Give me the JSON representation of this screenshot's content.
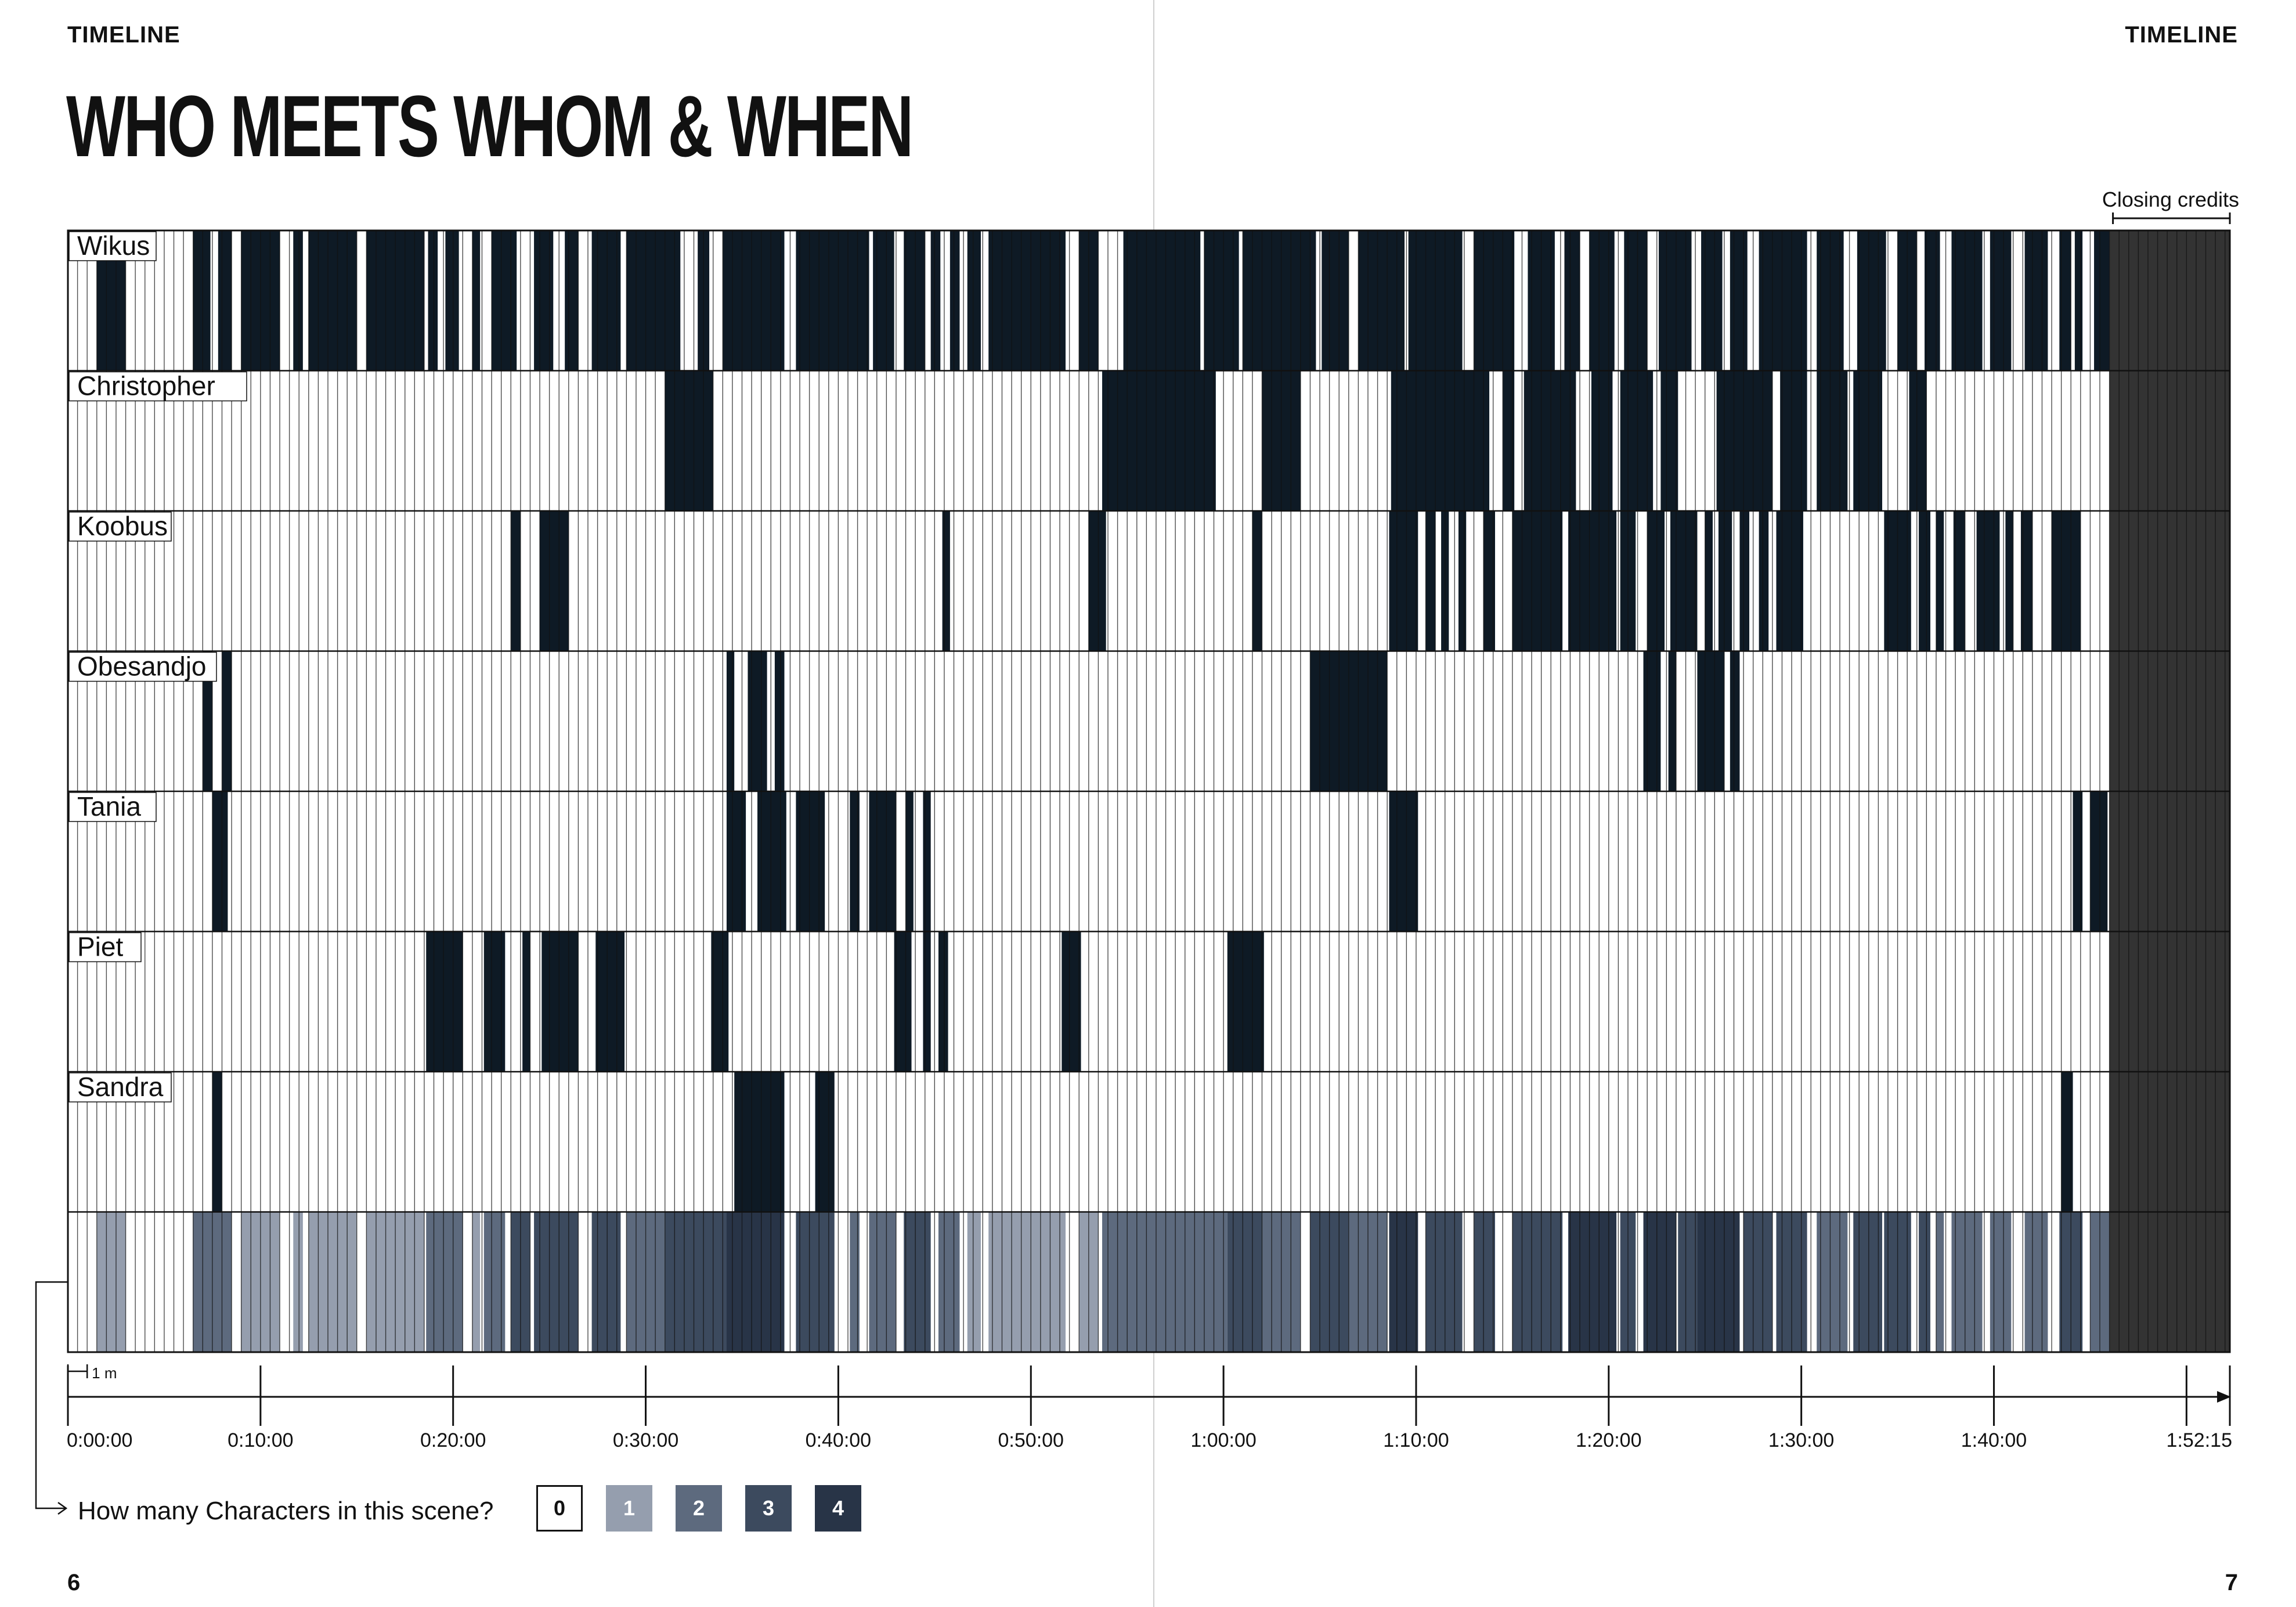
{
  "header": {
    "left_label": "TIMELINE",
    "right_label": "TIMELINE"
  },
  "title": "WHO MEETS WHOM & WHEN",
  "annotations": {
    "closing_credits": "Closing credits",
    "scale_label": "1 m"
  },
  "footer": {
    "left_page": "6",
    "right_page": "7"
  },
  "legend": {
    "question": "How many Characters in this scene?",
    "items": [
      {
        "label": "0",
        "color": "#ffffff"
      },
      {
        "label": "1",
        "color": "#959eae"
      },
      {
        "label": "2",
        "color": "#5d6a7e"
      },
      {
        "label": "3",
        "color": "#3c4a5e"
      },
      {
        "label": "4",
        "color": "#283447"
      }
    ]
  },
  "colors": {
    "present": "#0e1a25",
    "credits": "#333333",
    "grid": "#111111"
  },
  "chart_data": {
    "type": "heatmap",
    "unit": "minutes",
    "total_minutes": 112.25,
    "film_minutes": 106,
    "closing_credits_range": [
      106,
      112.25
    ],
    "x_ticks": [
      {
        "label": "0:00:00",
        "value": 0
      },
      {
        "label": "0:10:00",
        "value": 10
      },
      {
        "label": "0:20:00",
        "value": 20
      },
      {
        "label": "0:30:00",
        "value": 30
      },
      {
        "label": "0:40:00",
        "value": 40
      },
      {
        "label": "0:50:00",
        "value": 50
      },
      {
        "label": "1:00:00",
        "value": 60
      },
      {
        "label": "1:10:00",
        "value": 70
      },
      {
        "label": "1:20:00",
        "value": 80
      },
      {
        "label": "1:30:00",
        "value": 90
      },
      {
        "label": "1:40:00",
        "value": 100
      },
      {
        "label": "",
        "value": 110
      },
      {
        "label": "1:52:15",
        "value": 112.25
      }
    ],
    "rows": [
      {
        "name": "Wikus",
        "intervals": [
          [
            1.5,
            3.0
          ],
          [
            6.5,
            7.4
          ],
          [
            7.8,
            8.5
          ],
          [
            9.0,
            11.0
          ],
          [
            11.7,
            12.2
          ],
          [
            12.5,
            15.0
          ],
          [
            15.5,
            18.5
          ],
          [
            18.7,
            19.2
          ],
          [
            19.6,
            20.3
          ],
          [
            21.0,
            21.4
          ],
          [
            22.0,
            23.3
          ],
          [
            24.2,
            25.2
          ],
          [
            25.8,
            26.5
          ],
          [
            27.2,
            28.7
          ],
          [
            29.0,
            31.8
          ],
          [
            32.7,
            33.3
          ],
          [
            34.0,
            37.2
          ],
          [
            37.8,
            41.6
          ],
          [
            41.8,
            42.9
          ],
          [
            43.4,
            44.4
          ],
          [
            43.6,
            44.5
          ],
          [
            44.8,
            45.3
          ],
          [
            45.8,
            46.3
          ],
          [
            46.7,
            47.4
          ],
          [
            47.8,
            51.8
          ],
          [
            52.5,
            53.5
          ],
          [
            54.8,
            58.8
          ],
          [
            59.0,
            60.8
          ],
          [
            61.0,
            64.8
          ],
          [
            65.1,
            66.5
          ],
          [
            67.0,
            69.4
          ],
          [
            69.6,
            72.4
          ],
          [
            73.0,
            75.1
          ],
          [
            75.8,
            77.2
          ],
          [
            77.7,
            78.5
          ],
          [
            79.0,
            80.3
          ],
          [
            80.8,
            82.0
          ],
          [
            82.6,
            84.3
          ],
          [
            84.8,
            85.9
          ],
          [
            86.3,
            87.2
          ],
          [
            87.8,
            90.3
          ],
          [
            90.8,
            92.2
          ],
          [
            92.9,
            94.4
          ],
          [
            95.0,
            96.0
          ],
          [
            96.4,
            97.2
          ],
          [
            97.8,
            99.4
          ],
          [
            99.8,
            100.9
          ],
          [
            101.6,
            102.8
          ],
          [
            103.4,
            104.0
          ],
          [
            104.2,
            104.6
          ],
          [
            105.2,
            106.0
          ]
        ]
      },
      {
        "name": "Christopher",
        "intervals": [
          [
            31.0,
            33.5
          ],
          [
            53.7,
            59.6
          ],
          [
            62.0,
            64.0
          ],
          [
            68.7,
            73.8
          ],
          [
            74.5,
            75.1
          ],
          [
            75.6,
            78.3
          ],
          [
            79.1,
            80.2
          ],
          [
            80.6,
            82.3
          ],
          [
            82.7,
            83.6
          ],
          [
            85.6,
            88.5
          ],
          [
            88.9,
            90.3
          ],
          [
            90.8,
            92.4
          ],
          [
            92.7,
            94.2
          ],
          [
            95.6,
            96.5
          ]
        ]
      },
      {
        "name": "Koobus",
        "intervals": [
          [
            23.0,
            23.5
          ],
          [
            24.5,
            26.0
          ],
          [
            45.4,
            45.8
          ],
          [
            53.0,
            53.9
          ],
          [
            61.5,
            62.0
          ],
          [
            68.6,
            70.1
          ],
          [
            70.5,
            71.0
          ],
          [
            71.3,
            71.7
          ],
          [
            72.2,
            72.6
          ],
          [
            73.5,
            74.1
          ],
          [
            75.0,
            77.6
          ],
          [
            77.9,
            80.4
          ],
          [
            80.6,
            81.4
          ],
          [
            82.0,
            82.9
          ],
          [
            83.2,
            84.6
          ],
          [
            85.0,
            85.4
          ],
          [
            85.7,
            86.4
          ],
          [
            86.8,
            87.3
          ],
          [
            87.8,
            88.3
          ],
          [
            88.7,
            90.1
          ],
          [
            94.3,
            95.7
          ],
          [
            96.1,
            96.7
          ],
          [
            97.0,
            97.4
          ],
          [
            97.9,
            98.5
          ],
          [
            99.1,
            100.3
          ],
          [
            100.6,
            101.0
          ],
          [
            101.4,
            102.0
          ],
          [
            103.0,
            104.5
          ]
        ]
      },
      {
        "name": "Obesandjo",
        "intervals": [
          [
            7.0,
            7.5
          ],
          [
            8.0,
            8.5
          ],
          [
            34.2,
            34.6
          ],
          [
            35.3,
            36.3
          ],
          [
            36.7,
            37.2
          ],
          [
            64.5,
            68.5
          ],
          [
            81.8,
            82.7
          ],
          [
            83.1,
            83.5
          ],
          [
            84.6,
            86.0
          ],
          [
            86.3,
            86.8
          ]
        ]
      },
      {
        "name": "Tania",
        "intervals": [
          [
            7.5,
            8.3
          ],
          [
            34.2,
            35.2
          ],
          [
            35.8,
            37.3
          ],
          [
            37.8,
            39.3
          ],
          [
            40.6,
            41.1
          ],
          [
            41.6,
            43.0
          ],
          [
            43.5,
            43.9
          ],
          [
            44.4,
            44.8
          ],
          [
            68.6,
            70.1
          ],
          [
            104.1,
            104.6
          ],
          [
            105.0,
            105.9
          ]
        ]
      },
      {
        "name": "Piet",
        "intervals": [
          [
            18.6,
            20.5
          ],
          [
            21.6,
            22.7
          ],
          [
            23.6,
            24.0
          ],
          [
            24.6,
            26.5
          ],
          [
            27.4,
            28.9
          ],
          [
            33.4,
            34.3
          ],
          [
            42.9,
            43.8
          ],
          [
            44.4,
            44.8
          ],
          [
            45.2,
            45.7
          ],
          [
            51.6,
            52.6
          ],
          [
            60.2,
            62.1
          ]
        ]
      },
      {
        "name": "Sandra",
        "intervals": [
          [
            7.5,
            8.0
          ],
          [
            34.6,
            37.2
          ],
          [
            38.8,
            39.8
          ],
          [
            103.5,
            104.1
          ]
        ]
      }
    ],
    "count_row": {
      "label": "How many Characters in this scene?",
      "segments": [
        [
          1.5,
          3.0,
          1
        ],
        [
          6.5,
          8.5,
          2
        ],
        [
          9.0,
          11.0,
          1
        ],
        [
          11.7,
          12.2,
          1
        ],
        [
          12.5,
          15.0,
          1
        ],
        [
          15.5,
          18.5,
          1
        ],
        [
          18.6,
          20.5,
          2
        ],
        [
          21.0,
          21.4,
          1
        ],
        [
          21.6,
          22.7,
          2
        ],
        [
          23.0,
          24.0,
          3
        ],
        [
          24.2,
          26.5,
          3
        ],
        [
          27.2,
          28.7,
          3
        ],
        [
          29.0,
          31.0,
          2
        ],
        [
          31.0,
          33.5,
          3
        ],
        [
          33.4,
          34.3,
          3
        ],
        [
          34.2,
          37.2,
          4
        ],
        [
          37.8,
          39.8,
          3
        ],
        [
          40.6,
          41.1,
          2
        ],
        [
          41.6,
          43.0,
          2
        ],
        [
          43.4,
          44.8,
          3
        ],
        [
          45.2,
          46.3,
          2
        ],
        [
          46.7,
          47.4,
          1
        ],
        [
          47.8,
          49.5,
          1
        ],
        [
          49.5,
          51.8,
          1
        ],
        [
          52.5,
          53.5,
          1
        ],
        [
          53.7,
          59.6,
          2
        ],
        [
          59.0,
          60.2,
          2
        ],
        [
          60.2,
          62.1,
          3
        ],
        [
          62.0,
          64.0,
          2
        ],
        [
          64.5,
          66.5,
          3
        ],
        [
          66.5,
          68.5,
          2
        ],
        [
          68.6,
          70.1,
          4
        ],
        [
          70.5,
          72.4,
          3
        ],
        [
          73.0,
          74.1,
          3
        ],
        [
          75.0,
          77.6,
          3
        ],
        [
          77.9,
          80.4,
          4
        ],
        [
          80.6,
          81.4,
          3
        ],
        [
          81.8,
          83.5,
          4
        ],
        [
          83.6,
          84.6,
          3
        ],
        [
          84.6,
          86.8,
          4
        ],
        [
          87.0,
          88.5,
          3
        ],
        [
          88.7,
          90.3,
          3
        ],
        [
          90.8,
          92.4,
          2
        ],
        [
          92.7,
          94.2,
          3
        ],
        [
          94.3,
          95.7,
          3
        ],
        [
          96.1,
          96.7,
          3
        ],
        [
          97.0,
          97.4,
          2
        ],
        [
          97.8,
          99.4,
          2
        ],
        [
          99.8,
          100.9,
          2
        ],
        [
          101.6,
          102.8,
          2
        ],
        [
          103.4,
          104.6,
          3
        ],
        [
          105.0,
          106.0,
          2
        ]
      ]
    }
  }
}
